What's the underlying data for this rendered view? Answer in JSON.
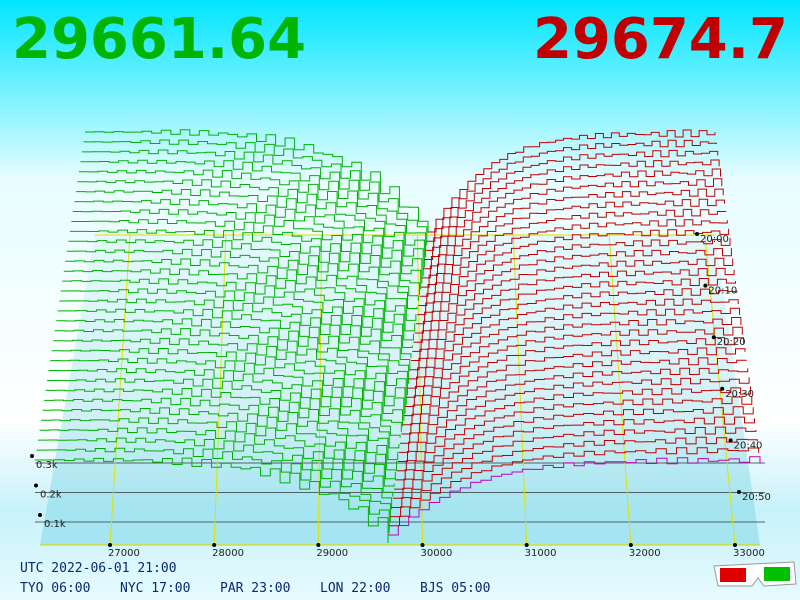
{
  "header": {
    "bid": "29661.64",
    "ask": "29674.7"
  },
  "price_axis": {
    "ticks": [
      "27000",
      "28000",
      "29000",
      "30000",
      "31000",
      "32000",
      "33000"
    ]
  },
  "depth_axis": {
    "labels": [
      "0.1k",
      "0.2k",
      "0.3k"
    ]
  },
  "time_axis": {
    "labels": [
      "20:00",
      "20:10",
      "20:20",
      "20:30",
      "20:40",
      "20:50"
    ]
  },
  "footer": {
    "utc": "UTC 2022-06-01 21:00",
    "zones": [
      "TYO 06:00",
      "NYC 17:00",
      "PAR 23:00",
      "LON 22:00",
      "BJS 05:00"
    ]
  }
}
